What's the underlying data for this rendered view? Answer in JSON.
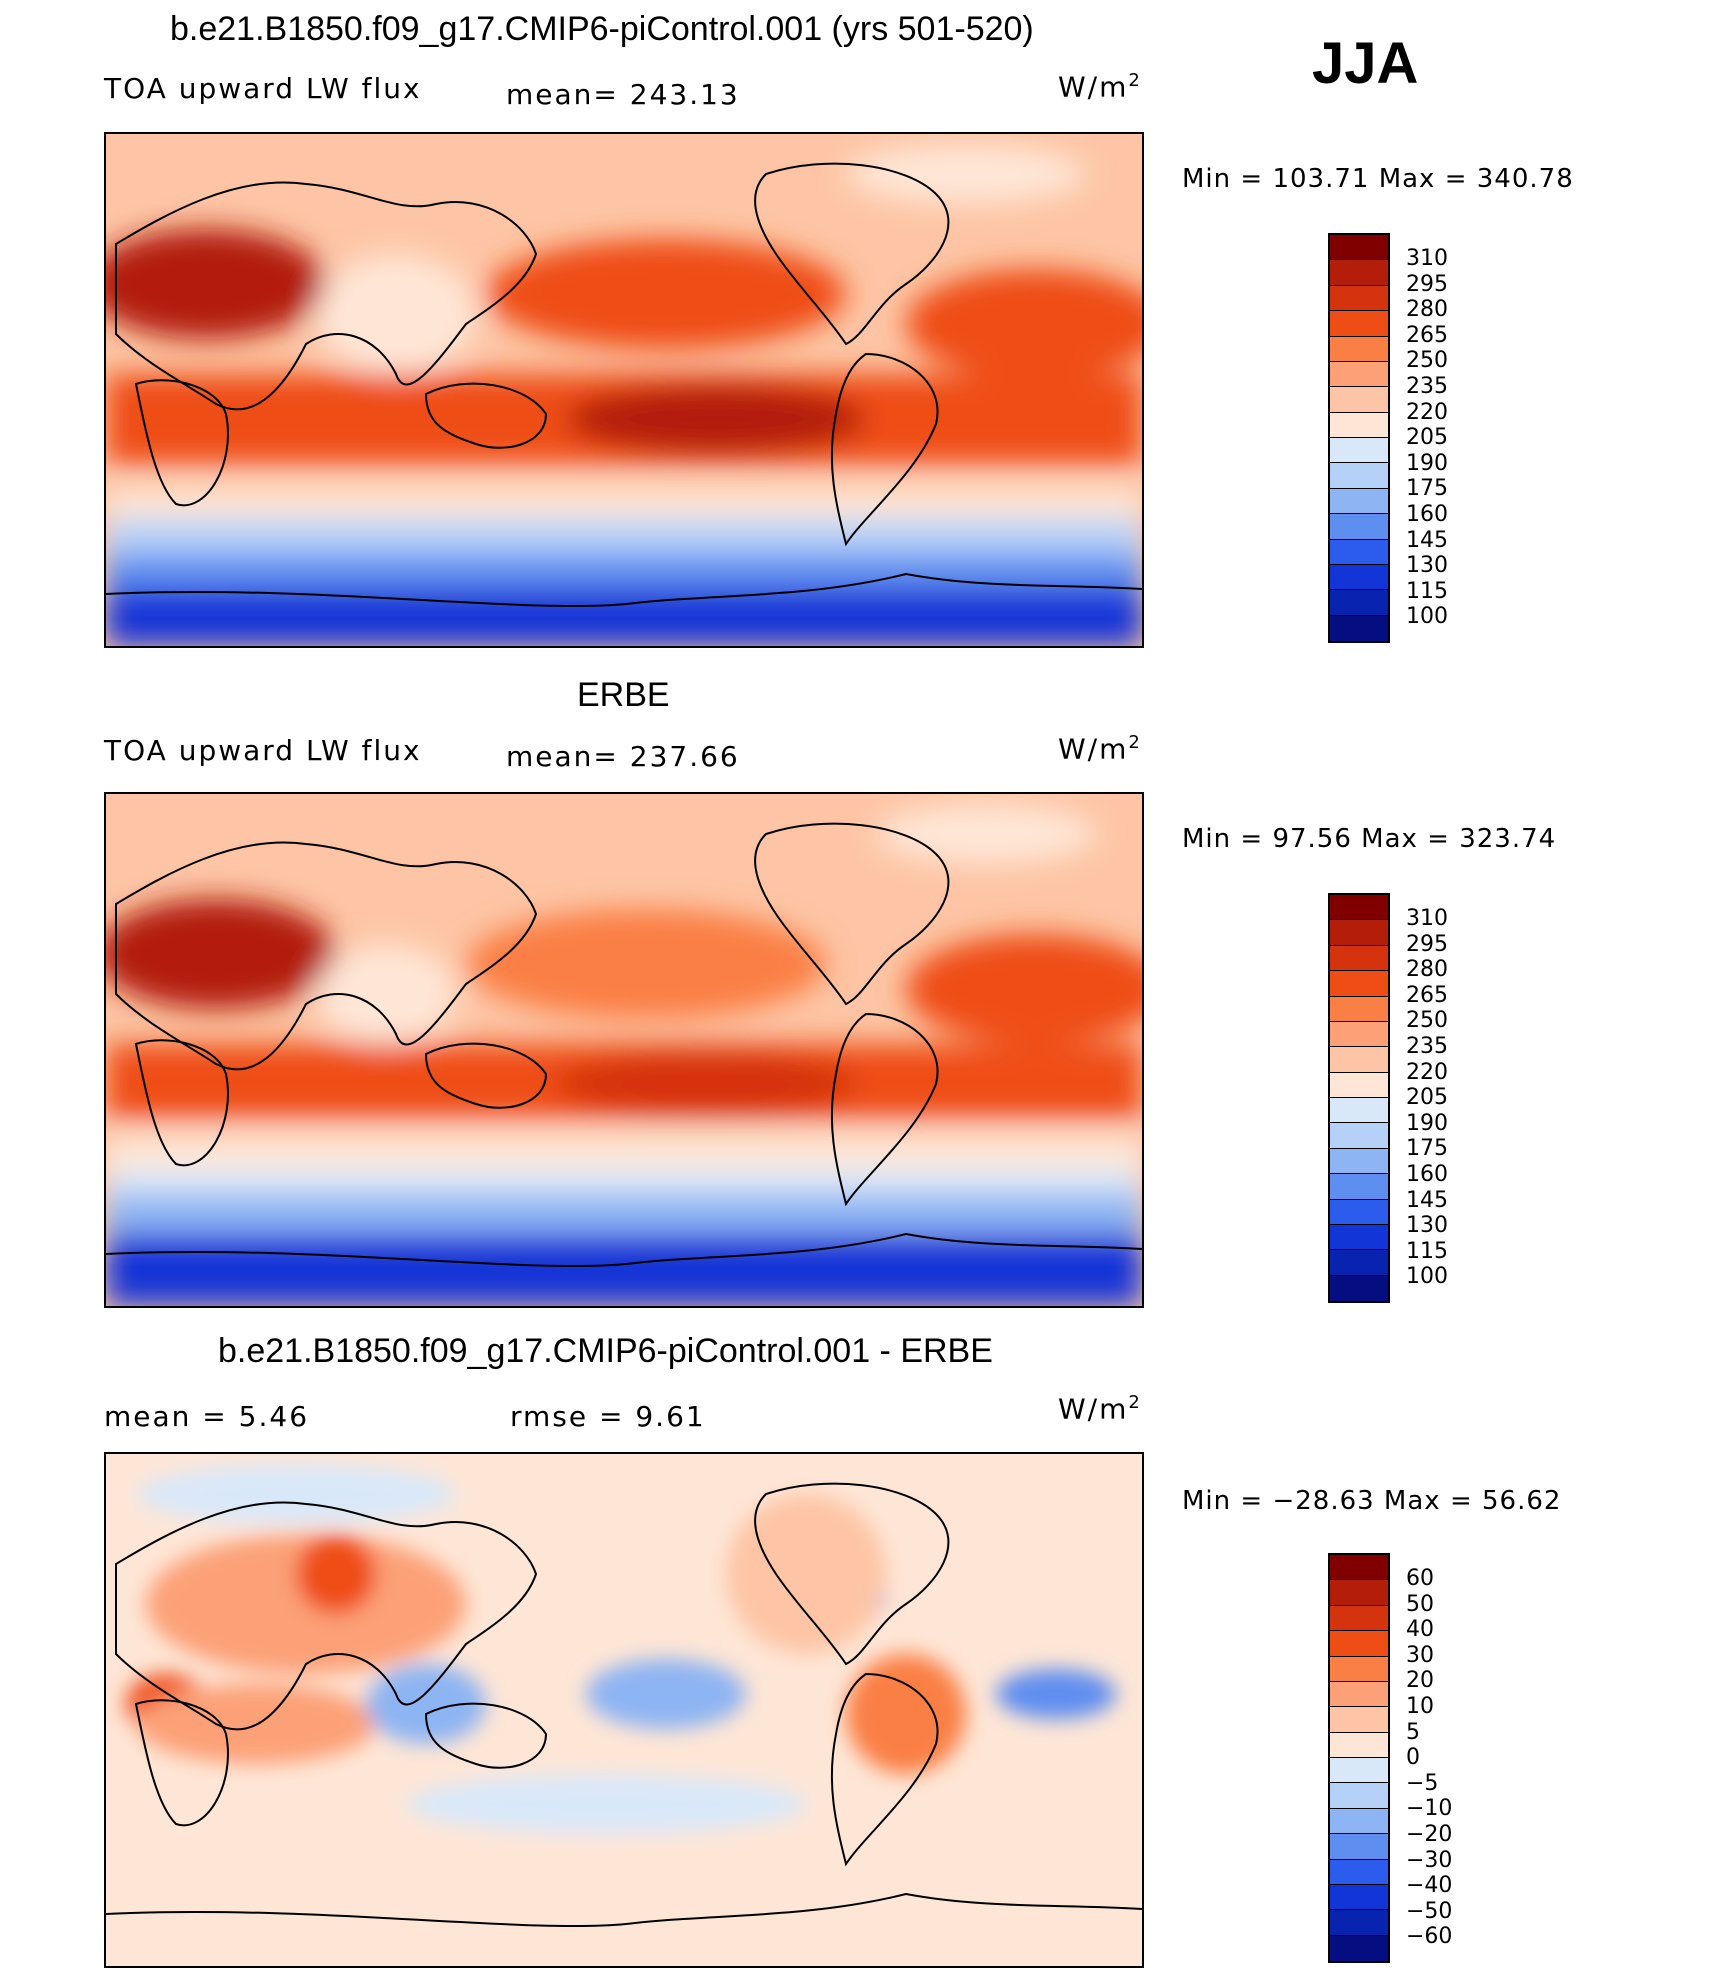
{
  "season": "JJA",
  "units_text": "W/m",
  "units_sup": "2",
  "panels": [
    {
      "title": "b.e21.B1850.f09_g17.CMIP6-piControl.001 (yrs 501-520)",
      "variable": "TOA upward LW flux",
      "mean_text": "mean=  243.13",
      "minmax_text": "Min  =  103.71  Max  =  340.78",
      "levels": [
        "310",
        "295",
        "280",
        "265",
        "250",
        "235",
        "220",
        "205",
        "190",
        "175",
        "160",
        "145",
        "130",
        "115",
        "100"
      ],
      "colors": [
        "#800000",
        "#b31d0a",
        "#d5330e",
        "#ef4d16",
        "#fa7f45",
        "#fca077",
        "#fdc5a5",
        "#fee6d6",
        "#d9e8f9",
        "#b5d1f8",
        "#8db4f3",
        "#5e8ef0",
        "#2c5cee",
        "#1235d7",
        "#0823b0",
        "#050e80"
      ]
    },
    {
      "title": "ERBE",
      "variable": "TOA upward LW flux",
      "mean_text": "mean=  237.66",
      "minmax_text": "Min  =    97.56  Max  =  323.74",
      "levels": [
        "310",
        "295",
        "280",
        "265",
        "250",
        "235",
        "220",
        "205",
        "190",
        "175",
        "160",
        "145",
        "130",
        "115",
        "100"
      ],
      "colors": [
        "#800000",
        "#b31d0a",
        "#d5330e",
        "#ef4d16",
        "#fa7f45",
        "#fca077",
        "#fdc5a5",
        "#fee6d6",
        "#d9e8f9",
        "#b5d1f8",
        "#8db4f3",
        "#5e8ef0",
        "#2c5cee",
        "#1235d7",
        "#0823b0",
        "#050e80"
      ]
    },
    {
      "title": "b.e21.B1850.f09_g17.CMIP6-piControl.001 - ERBE",
      "mean_text": "mean  =      5.46",
      "rmse_text": "rmse  =      9.61",
      "minmax_text": "Min  =  −28.63  Max  =    56.62",
      "levels": [
        "60",
        "50",
        "40",
        "30",
        "20",
        "10",
        "5",
        "0",
        "−5",
        "−10",
        "−20",
        "−30",
        "−40",
        "−50",
        "−60"
      ],
      "colors": [
        "#800000",
        "#b31d0a",
        "#d5330e",
        "#ef4d16",
        "#fa7f45",
        "#fca077",
        "#fdc5a5",
        "#fee6d6",
        "#d9e8f9",
        "#b5d1f8",
        "#8db4f3",
        "#5e8ef0",
        "#2c5cee",
        "#1235d7",
        "#0823b0",
        "#050e80"
      ]
    }
  ]
}
